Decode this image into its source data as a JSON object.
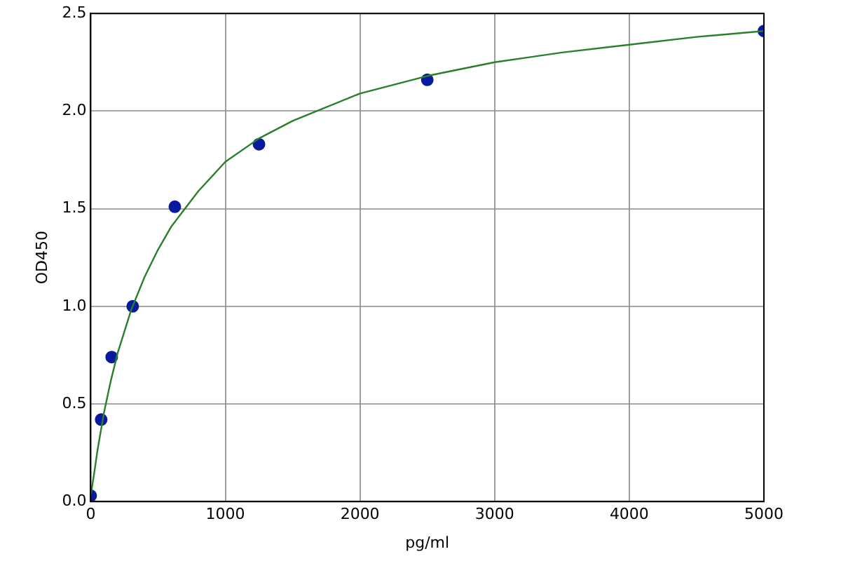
{
  "chart_data": {
    "type": "scatter",
    "xlabel": "pg/ml",
    "ylabel": "OD450",
    "xlim": [
      0,
      5000
    ],
    "xticks": [
      0,
      1000,
      2000,
      3000,
      4000,
      5000
    ],
    "ylim": [
      0,
      2.5
    ],
    "yticks": [
      {
        "value": 0,
        "label": "0.0"
      },
      0.5,
      {
        "value": 1,
        "label": "1.0"
      },
      1.5,
      {
        "value": 2,
        "label": "2.0"
      },
      2.5
    ],
    "grid": true,
    "marker": "circle",
    "series": [
      {
        "color": "#0a1aa0",
        "x": [
          0,
          78,
          156,
          312,
          625,
          1250,
          2500,
          5000
        ],
        "values": [
          0.03,
          0.42,
          0.74,
          1.0,
          1.51,
          1.83,
          2.16,
          2.41
        ]
      },
      {
        "type": "line",
        "color": "#2a7f2a",
        "marker": "none",
        "x": [
          0,
          25,
          50,
          100,
          150,
          200,
          300,
          400,
          500,
          600,
          800,
          1000,
          1250,
          1500,
          2000,
          2500,
          3000,
          3500,
          4000,
          4500,
          5000
        ],
        "values": [
          0.03,
          0.14,
          0.26,
          0.46,
          0.62,
          0.76,
          0.98,
          1.15,
          1.29,
          1.41,
          1.59,
          1.74,
          1.86,
          1.95,
          2.09,
          2.18,
          2.25,
          2.3,
          2.34,
          2.38,
          2.41
        ]
      }
    ]
  }
}
